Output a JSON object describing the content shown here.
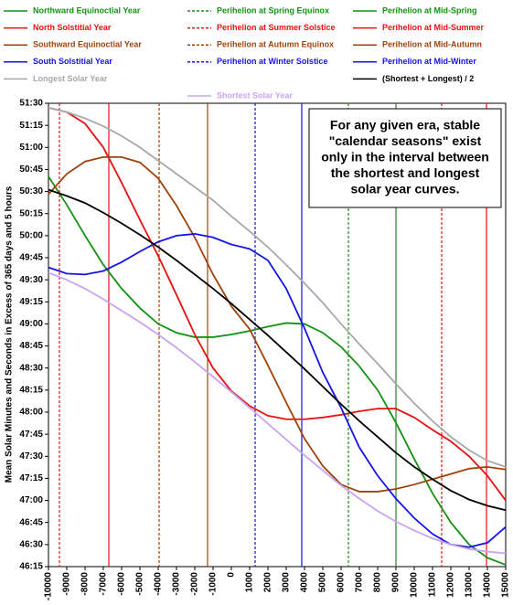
{
  "chart_data": {
    "type": "line",
    "y_label": "Mean Solar Minutes and Seconds in Excess of 365 days and 5 hours",
    "annotation": [
      "For any given era, stable",
      "\"calendar seasons\" exist",
      "only in the interval between",
      "the shortest and longest",
      "solar year curves."
    ],
    "x": [
      -10000,
      -9000,
      -8000,
      -7000,
      -6000,
      -5000,
      -4000,
      -3000,
      -2000,
      -1000,
      0,
      1000,
      2000,
      3000,
      4000,
      5000,
      6000,
      7000,
      8000,
      9000,
      10000,
      11000,
      12000,
      13000,
      14000,
      15000
    ],
    "xlim": [
      -10000,
      15000
    ],
    "xticks": [
      -10000,
      -9000,
      -8000,
      -7000,
      -6000,
      -5000,
      -4000,
      -3000,
      -2000,
      -1000,
      0,
      1000,
      2000,
      3000,
      4000,
      5000,
      6000,
      7000,
      8000,
      9000,
      10000,
      11000,
      12000,
      13000,
      14000,
      15000
    ],
    "ylim": [
      46.25,
      51.5
    ],
    "yticks": [
      {
        "value": 46.25,
        "label": "46:15"
      },
      {
        "value": 46.5,
        "label": "46:30"
      },
      {
        "value": 46.75,
        "label": "46:45"
      },
      {
        "value": 47,
        "label": "47:00"
      },
      {
        "value": 47.25,
        "label": "47:15"
      },
      {
        "value": 47.5,
        "label": "47:30"
      },
      {
        "value": 47.75,
        "label": "47:45"
      },
      {
        "value": 48,
        "label": "48:00"
      },
      {
        "value": 48.25,
        "label": "48:15"
      },
      {
        "value": 48.5,
        "label": "48:30"
      },
      {
        "value": 48.75,
        "label": "48:45"
      },
      {
        "value": 49,
        "label": "49:00"
      },
      {
        "value": 49.25,
        "label": "49:15"
      },
      {
        "value": 49.5,
        "label": "49:30"
      },
      {
        "value": 49.75,
        "label": "49:45"
      },
      {
        "value": 50,
        "label": "50:00"
      },
      {
        "value": 50.25,
        "label": "50:15"
      },
      {
        "value": 50.5,
        "label": "50:30"
      },
      {
        "value": 50.75,
        "label": "50:45"
      },
      {
        "value": 51,
        "label": "51:00"
      },
      {
        "value": 51.25,
        "label": "51:15"
      },
      {
        "value": 51.5,
        "label": "51:30"
      }
    ],
    "series": [
      {
        "name": "Northward Equinoctial Year",
        "color": "#139213",
        "values": [
          50.67,
          50.35,
          50.0,
          49.67,
          49.4,
          49.18,
          49.0,
          48.9,
          48.85,
          48.85,
          48.88,
          48.92,
          48.97,
          49.01,
          49.0,
          48.9,
          48.74,
          48.52,
          48.25,
          47.88,
          47.47,
          47.08,
          46.75,
          46.5,
          46.35,
          46.27
        ]
      },
      {
        "name": "North Solstitial Year",
        "color": "#e81010",
        "values": [
          51.45,
          51.4,
          51.27,
          51.0,
          50.6,
          50.18,
          49.77,
          49.33,
          48.88,
          48.5,
          48.24,
          48.07,
          47.96,
          47.92,
          47.92,
          47.94,
          47.97,
          48.01,
          48.04,
          48.04,
          47.94,
          47.8,
          47.67,
          47.5,
          47.28,
          47.0
        ]
      },
      {
        "name": "Southward Equinoctial Year",
        "color": "#a0420a",
        "values": [
          50.47,
          50.7,
          50.84,
          50.89,
          50.89,
          50.83,
          50.65,
          50.34,
          49.98,
          49.56,
          49.2,
          48.94,
          48.53,
          48.11,
          47.7,
          47.39,
          47.18,
          47.1,
          47.1,
          47.13,
          47.18,
          47.24,
          47.3,
          47.36,
          47.38,
          47.35
        ]
      },
      {
        "name": "South Solstitial Year",
        "color": "#1414e6",
        "values": [
          49.64,
          49.57,
          49.56,
          49.6,
          49.7,
          49.82,
          49.93,
          50.0,
          50.02,
          49.98,
          49.9,
          49.85,
          49.72,
          49.4,
          48.95,
          48.45,
          48.05,
          47.6,
          47.28,
          47.02,
          46.8,
          46.62,
          46.5,
          46.47,
          46.52,
          46.7
        ]
      },
      {
        "name": "Longest Solar Year",
        "color": "#a8a8a8",
        "values": [
          51.45,
          51.4,
          51.33,
          51.24,
          51.13,
          51.0,
          50.85,
          50.7,
          50.55,
          50.4,
          50.22,
          50.05,
          49.87,
          49.67,
          49.46,
          49.24,
          49.0,
          48.77,
          48.55,
          48.32,
          48.1,
          47.9,
          47.72,
          47.57,
          47.45,
          47.38
        ]
      },
      {
        "name": "Shortest Solar Year",
        "color": "#c9a3f2",
        "values": [
          49.58,
          49.5,
          49.4,
          49.28,
          49.15,
          49.02,
          48.88,
          48.73,
          48.57,
          48.4,
          48.23,
          48.05,
          47.87,
          47.69,
          47.51,
          47.34,
          47.17,
          47.02,
          46.88,
          46.76,
          46.66,
          46.57,
          46.5,
          46.45,
          46.42,
          46.4
        ]
      },
      {
        "name": "(Shortest + Longest) / 2",
        "color": "#000000",
        "values": [
          50.52,
          50.45,
          50.37,
          50.26,
          50.14,
          50.01,
          49.87,
          49.72,
          49.56,
          49.4,
          49.23,
          49.05,
          48.87,
          48.68,
          48.49,
          48.29,
          48.09,
          47.9,
          47.72,
          47.54,
          47.38,
          47.24,
          47.11,
          47.01,
          46.94,
          46.89
        ]
      }
    ],
    "reference_lines": [
      {
        "name": "Perihelion at Spring Equinox",
        "color": "#139213",
        "style": "dashed",
        "x": [
          6400
        ]
      },
      {
        "name": "Perihelion at Summer Solstice",
        "color": "#e81010",
        "style": "dashed",
        "x": [
          -9400,
          11500
        ]
      },
      {
        "name": "Perihelion at Autumn Equinox",
        "color": "#a0420a",
        "style": "dashed",
        "x": [
          -3950
        ]
      },
      {
        "name": "Perihelion at Winter Solstice",
        "color": "#1414e6",
        "style": "dashed",
        "x": [
          1300
        ]
      },
      {
        "name": "Perihelion at Mid-Spring",
        "color": "#139213",
        "style": "solid",
        "x": [
          9000
        ]
      },
      {
        "name": "Perihelion at Mid-Summer",
        "color": "#e81010",
        "style": "solid",
        "x": [
          -6700,
          13950
        ]
      },
      {
        "name": "Perihelion at Mid-Autumn",
        "color": "#a0420a",
        "style": "solid",
        "x": [
          -1300
        ]
      },
      {
        "name": "Perihelion at Mid-Winter",
        "color": "#1414e6",
        "style": "solid",
        "x": [
          3850
        ]
      }
    ]
  }
}
